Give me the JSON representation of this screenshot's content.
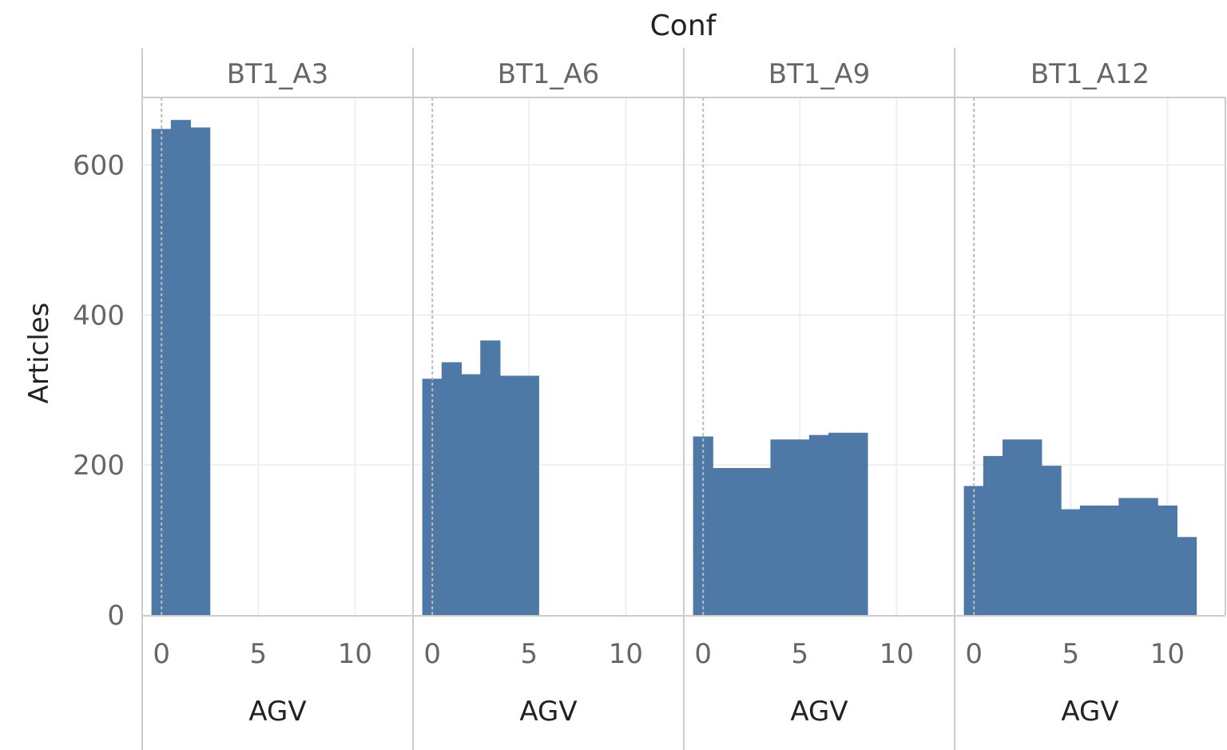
{
  "chart_data": {
    "type": "bar",
    "column_header": "Conf",
    "xlabel": "AGV",
    "ylabel": "Articles",
    "xlim": [
      -1,
      13
    ],
    "ylim": [
      0,
      690
    ],
    "x_ticks": [
      "0",
      "5",
      "10"
    ],
    "y_ticks": [
      "0",
      "200",
      "400",
      "600"
    ],
    "reference_line_x": 0,
    "grid": true,
    "bar_color": "#4e79a7",
    "panels": [
      {
        "name": "BT1_A3",
        "x": [
          0,
          1,
          2
        ],
        "values": [
          648,
          660,
          650
        ]
      },
      {
        "name": "BT1_A6",
        "x": [
          0,
          1,
          2,
          3,
          4,
          5
        ],
        "values": [
          315,
          337,
          321,
          366,
          319,
          319
        ]
      },
      {
        "name": "BT1_A9",
        "x": [
          0,
          1,
          2,
          3,
          4,
          5,
          6,
          7,
          8
        ],
        "values": [
          238,
          196,
          196,
          196,
          234,
          234,
          240,
          243,
          243
        ]
      },
      {
        "name": "BT1_A12",
        "x": [
          0,
          1,
          2,
          3,
          4,
          5,
          6,
          7,
          8,
          9,
          10,
          11
        ],
        "values": [
          172,
          212,
          234,
          234,
          199,
          141,
          146,
          146,
          156,
          156,
          146,
          104
        ]
      }
    ]
  }
}
